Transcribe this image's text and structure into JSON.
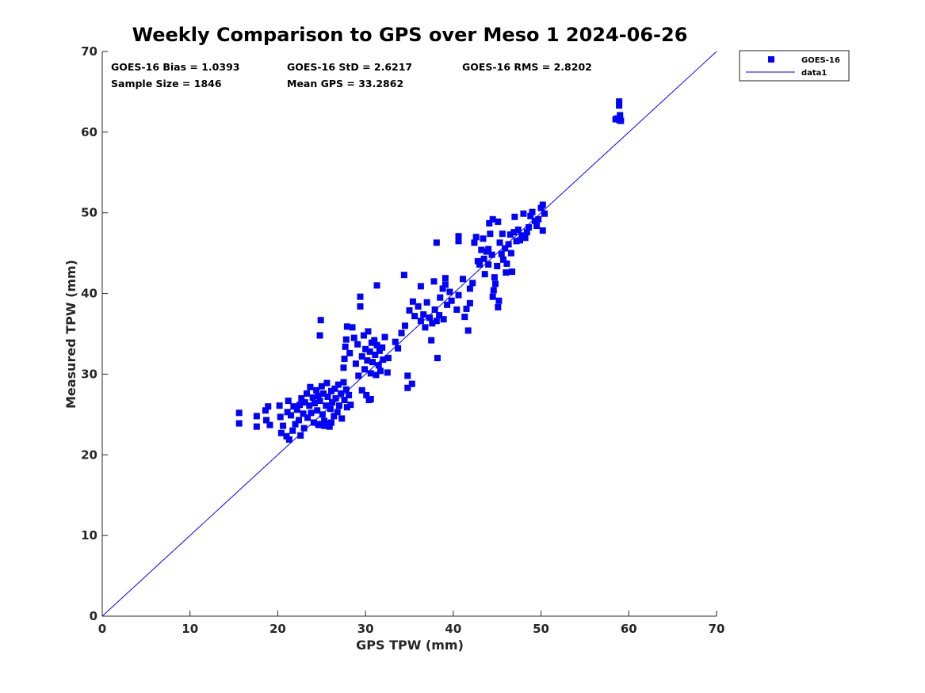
{
  "chart_data": {
    "type": "scatter",
    "title": "Weekly Comparison to GPS over Meso 1 2024-06-26",
    "xlabel": "GPS TPW (mm)",
    "ylabel": "Measured TPW (mm)",
    "xlim": [
      0,
      70
    ],
    "ylim": [
      0,
      70
    ],
    "xticks": [
      "0",
      "10",
      "20",
      "30",
      "40",
      "50",
      "60",
      "70"
    ],
    "yticks": [
      "0",
      "10",
      "20",
      "30",
      "40",
      "50",
      "60",
      "70"
    ],
    "grid": false,
    "legend_position": "top-right outside",
    "stats": [
      "GOES-16 Bias = 1.0393",
      "GOES-16 StD = 2.6217",
      "GOES-16 RMS = 2.8202",
      "Sample Size = 1846",
      "Mean GPS = 33.2862"
    ],
    "series": [
      {
        "name": "GOES-16",
        "type": "scatter",
        "marker": "square",
        "color": "#0000ff",
        "points": [
          [
            15.6,
            25.2
          ],
          [
            15.6,
            23.9
          ],
          [
            17.6,
            24.8
          ],
          [
            17.6,
            23.5
          ],
          [
            18.6,
            25.5
          ],
          [
            18.7,
            24.3
          ],
          [
            18.9,
            26.0
          ],
          [
            19.1,
            23.7
          ],
          [
            20.2,
            26.1
          ],
          [
            20.3,
            24.7
          ],
          [
            20.4,
            22.7
          ],
          [
            20.6,
            23.6
          ],
          [
            21.0,
            22.3
          ],
          [
            21.1,
            25.3
          ],
          [
            21.2,
            26.7
          ],
          [
            21.3,
            21.9
          ],
          [
            21.5,
            24.9
          ],
          [
            21.7,
            23.0
          ],
          [
            21.8,
            26.0
          ],
          [
            22.0,
            23.8
          ],
          [
            22.2,
            25.6
          ],
          [
            22.4,
            24.3
          ],
          [
            22.5,
            26.2
          ],
          [
            22.6,
            22.4
          ],
          [
            22.7,
            27.0
          ],
          [
            22.9,
            25.1
          ],
          [
            23.0,
            23.3
          ],
          [
            23.1,
            26.5
          ],
          [
            23.3,
            27.6
          ],
          [
            23.4,
            24.6
          ],
          [
            23.6,
            26.1
          ],
          [
            23.7,
            28.4
          ],
          [
            23.8,
            25.2
          ],
          [
            24.0,
            27.1
          ],
          [
            24.1,
            24.0
          ],
          [
            24.2,
            26.4
          ],
          [
            24.4,
            28.0
          ],
          [
            24.5,
            25.5
          ],
          [
            24.6,
            27.3
          ],
          [
            24.7,
            23.7
          ],
          [
            24.8,
            26.7
          ],
          [
            25.0,
            28.5
          ],
          [
            25.1,
            25.0
          ],
          [
            25.2,
            27.6
          ],
          [
            25.3,
            24.2
          ],
          [
            25.5,
            26.1
          ],
          [
            25.6,
            28.9
          ],
          [
            25.7,
            27.2
          ],
          [
            25.8,
            23.9
          ],
          [
            26.0,
            25.7
          ],
          [
            26.1,
            27.9
          ],
          [
            26.2,
            26.5
          ],
          [
            26.4,
            24.8
          ],
          [
            26.5,
            28.2
          ],
          [
            26.6,
            27.0
          ],
          [
            26.8,
            25.3
          ],
          [
            26.9,
            28.7
          ],
          [
            27.0,
            26.1
          ],
          [
            27.2,
            27.6
          ],
          [
            27.3,
            24.5
          ],
          [
            27.5,
            29.0
          ],
          [
            27.6,
            26.8
          ],
          [
            27.8,
            28.1
          ],
          [
            27.9,
            25.9
          ],
          [
            28.1,
            27.4
          ],
          [
            28.3,
            26.2
          ],
          [
            24.8,
            34.8
          ],
          [
            24.9,
            36.7
          ],
          [
            25.3,
            23.6
          ],
          [
            26.1,
            24.0
          ],
          [
            25.9,
            23.5
          ],
          [
            24.6,
            23.8
          ],
          [
            27.5,
            30.8
          ],
          [
            27.6,
            31.9
          ],
          [
            27.7,
            33.4
          ],
          [
            27.8,
            34.3
          ],
          [
            27.9,
            35.9
          ],
          [
            28.2,
            32.6
          ],
          [
            28.5,
            35.8
          ],
          [
            28.7,
            34.5
          ],
          [
            28.9,
            31.3
          ],
          [
            29.1,
            33.7
          ],
          [
            29.2,
            29.8
          ],
          [
            29.4,
            39.6
          ],
          [
            29.4,
            38.4
          ],
          [
            29.6,
            32.2
          ],
          [
            29.8,
            34.8
          ],
          [
            29.9,
            30.6
          ],
          [
            30.0,
            33.1
          ],
          [
            30.1,
            27.4
          ],
          [
            30.2,
            31.7
          ],
          [
            30.3,
            35.3
          ],
          [
            30.4,
            26.8
          ],
          [
            30.5,
            32.8
          ],
          [
            30.6,
            30.1
          ],
          [
            30.7,
            33.9
          ],
          [
            30.8,
            31.5
          ],
          [
            31.0,
            34.2
          ],
          [
            31.1,
            32.4
          ],
          [
            31.2,
            29.9
          ],
          [
            31.3,
            33.6
          ],
          [
            31.5,
            31.1
          ],
          [
            31.6,
            32.9
          ],
          [
            31.7,
            30.4
          ],
          [
            31.9,
            33.3
          ],
          [
            32.0,
            31.8
          ],
          [
            32.2,
            34.6
          ],
          [
            32.5,
            30.2
          ],
          [
            32.6,
            32.0
          ],
          [
            30.6,
            26.9
          ],
          [
            29.6,
            28.0
          ],
          [
            33.4,
            34.0
          ],
          [
            33.7,
            33.2
          ],
          [
            34.1,
            35.1
          ],
          [
            34.5,
            36.0
          ],
          [
            34.8,
            29.8
          ],
          [
            34.8,
            28.3
          ],
          [
            35.0,
            37.9
          ],
          [
            35.3,
            28.8
          ],
          [
            35.4,
            39.0
          ],
          [
            35.6,
            37.2
          ],
          [
            36.0,
            38.4
          ],
          [
            36.3,
            36.6
          ],
          [
            36.6,
            37.4
          ],
          [
            36.8,
            35.8
          ],
          [
            37.0,
            38.9
          ],
          [
            37.3,
            37.0
          ],
          [
            37.5,
            34.2
          ],
          [
            37.6,
            36.3
          ],
          [
            37.9,
            38.0
          ],
          [
            38.1,
            36.6
          ],
          [
            38.2,
            32.0
          ],
          [
            38.4,
            37.3
          ],
          [
            38.5,
            39.5
          ],
          [
            38.8,
            40.6
          ],
          [
            38.9,
            36.8
          ],
          [
            39.1,
            41.9
          ],
          [
            39.3,
            38.6
          ],
          [
            39.6,
            40.2
          ],
          [
            39.8,
            39.1
          ],
          [
            40.4,
            38.0
          ],
          [
            40.6,
            39.8
          ],
          [
            38.1,
            46.3
          ],
          [
            39.1,
            41.1
          ],
          [
            36.3,
            40.9
          ],
          [
            34.4,
            42.3
          ],
          [
            31.3,
            41.0
          ],
          [
            37.8,
            41.5
          ],
          [
            40.6,
            46.5
          ],
          [
            40.6,
            47.1
          ],
          [
            41.1,
            41.8
          ],
          [
            41.3,
            37.1
          ],
          [
            41.5,
            38.1
          ],
          [
            41.7,
            35.4
          ],
          [
            41.9,
            38.8
          ],
          [
            41.9,
            40.6
          ],
          [
            42.2,
            41.3
          ],
          [
            42.4,
            46.3
          ],
          [
            42.6,
            47.0
          ],
          [
            42.8,
            44.0
          ],
          [
            43.0,
            43.6
          ],
          [
            43.2,
            45.4
          ],
          [
            43.5,
            44.3
          ],
          [
            43.6,
            42.4
          ],
          [
            43.8,
            45.2
          ],
          [
            44.0,
            43.6
          ],
          [
            44.1,
            48.7
          ],
          [
            44.2,
            47.4
          ],
          [
            44.4,
            44.8
          ],
          [
            44.5,
            39.6
          ],
          [
            44.6,
            40.4
          ],
          [
            44.7,
            42.0
          ],
          [
            44.8,
            41.2
          ],
          [
            45.0,
            43.4
          ],
          [
            45.1,
            38.3
          ],
          [
            45.2,
            39.1
          ],
          [
            45.3,
            46.3
          ],
          [
            45.5,
            44.9
          ],
          [
            45.6,
            47.4
          ],
          [
            45.7,
            44.2
          ],
          [
            45.9,
            45.6
          ],
          [
            46.0,
            42.6
          ],
          [
            46.1,
            43.7
          ],
          [
            46.3,
            46.1
          ],
          [
            46.5,
            47.3
          ],
          [
            46.6,
            45.0
          ],
          [
            46.7,
            42.7
          ],
          [
            46.9,
            47.6
          ],
          [
            47.0,
            49.5
          ],
          [
            47.2,
            46.5
          ],
          [
            47.4,
            47.9
          ],
          [
            47.6,
            46.6
          ],
          [
            47.8,
            47.2
          ],
          [
            48.0,
            49.9
          ],
          [
            48.2,
            46.9
          ],
          [
            48.4,
            47.6
          ],
          [
            48.6,
            48.2
          ],
          [
            48.8,
            49.6
          ],
          [
            49.0,
            50.1
          ],
          [
            49.3,
            49.0
          ],
          [
            49.5,
            48.4
          ],
          [
            49.7,
            49.2
          ],
          [
            50.0,
            50.6
          ],
          [
            50.2,
            51.0
          ],
          [
            50.4,
            49.9
          ],
          [
            50.2,
            47.8
          ],
          [
            45.1,
            48.9
          ],
          [
            44.5,
            49.2
          ],
          [
            44.0,
            45.5
          ],
          [
            43.4,
            46.8
          ],
          [
            58.5,
            61.6
          ],
          [
            58.7,
            61.7
          ],
          [
            58.9,
            61.5
          ],
          [
            59.0,
            61.7
          ],
          [
            59.0,
            62.1
          ],
          [
            58.9,
            63.3
          ],
          [
            58.9,
            63.8
          ],
          [
            59.1,
            61.4
          ]
        ]
      },
      {
        "name": "data1",
        "type": "line",
        "color": "#0000ff",
        "x": [
          0,
          70
        ],
        "y": [
          0,
          70
        ]
      }
    ]
  }
}
